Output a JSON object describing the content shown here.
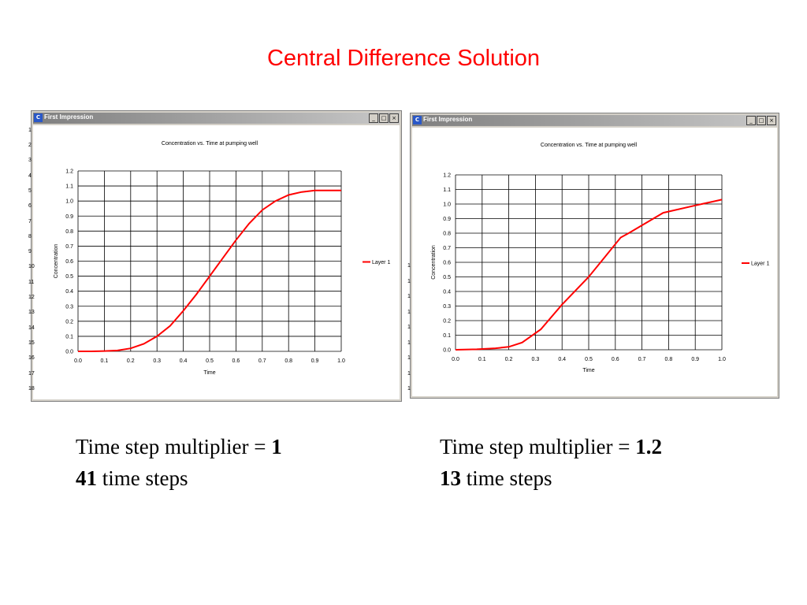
{
  "slide": {
    "title": "Central Difference Solution"
  },
  "windows": [
    {
      "title": "First Impression",
      "icon": "app-logo-icon",
      "controls": {
        "minimize": "_",
        "restore": "□",
        "close": "×"
      },
      "row_numbers": [
        "1",
        "2",
        "3",
        "4",
        "5",
        "6",
        "7",
        "8",
        "9",
        "10",
        "11",
        "12",
        "13",
        "14",
        "15",
        "16",
        "17",
        "18"
      ],
      "chart_data": {
        "type": "line",
        "title": "Concentration vs. Time at pumping well",
        "xlabel": "Time",
        "ylabel": "Concentration",
        "xlim": [
          0.0,
          1.0
        ],
        "ylim": [
          0.0,
          1.2
        ],
        "xticks": [
          "0.0",
          "0.1",
          "0.2",
          "0.3",
          "0.4",
          "0.5",
          "0.6",
          "0.7",
          "0.8",
          "0.9",
          "1.0"
        ],
        "yticks": [
          "0.0",
          "0.1",
          "0.2",
          "0.3",
          "0.4",
          "0.5",
          "0.6",
          "0.7",
          "0.8",
          "0.9",
          "1.0",
          "1.1",
          "1.2"
        ],
        "grid": true,
        "legend_position": "right",
        "series": [
          {
            "name": "Layer 1",
            "color": "#ff0000",
            "x": [
              0.0,
              0.05,
              0.1,
              0.15,
              0.2,
              0.25,
              0.3,
              0.35,
              0.4,
              0.45,
              0.5,
              0.55,
              0.6,
              0.65,
              0.7,
              0.75,
              0.8,
              0.85,
              0.9,
              0.95,
              1.0
            ],
            "y": [
              0.0,
              0.0,
              0.002,
              0.006,
              0.02,
              0.05,
              0.1,
              0.17,
              0.27,
              0.38,
              0.5,
              0.62,
              0.74,
              0.85,
              0.94,
              1.0,
              1.04,
              1.06,
              1.07,
              1.07,
              1.07
            ]
          }
        ]
      }
    },
    {
      "title": "First Impression",
      "icon": "app-logo-icon",
      "controls": {
        "minimize": "_",
        "restore": "□",
        "close": "×"
      },
      "row_numbers": [
        "1",
        "1",
        "1",
        "1",
        "1",
        "1",
        "1",
        "1",
        "1"
      ],
      "chart_data": {
        "type": "line",
        "title": "Concentration vs. Time at pumping well",
        "xlabel": "Time",
        "ylabel": "Concentration",
        "xlim": [
          0.0,
          1.0
        ],
        "ylim": [
          0.0,
          1.2
        ],
        "xticks": [
          "0.0",
          "0.1",
          "0.2",
          "0.3",
          "0.4",
          "0.5",
          "0.6",
          "0.7",
          "0.8",
          "0.9",
          "1.0"
        ],
        "yticks": [
          "0.0",
          "0.1",
          "0.2",
          "0.3",
          "0.4",
          "0.5",
          "0.6",
          "0.7",
          "0.8",
          "0.9",
          "1.0",
          "1.1",
          "1.2"
        ],
        "grid": true,
        "legend_position": "right",
        "series": [
          {
            "name": "Layer 1",
            "color": "#ff0000",
            "x": [
              0.0,
              0.08,
              0.15,
              0.2,
              0.25,
              0.32,
              0.4,
              0.5,
              0.62,
              0.65,
              0.78,
              0.9,
              1.0
            ],
            "y": [
              0.0,
              0.003,
              0.01,
              0.02,
              0.05,
              0.14,
              0.31,
              0.5,
              0.77,
              0.8,
              0.94,
              0.99,
              1.03
            ]
          }
        ]
      }
    }
  ],
  "captions": [
    {
      "multiplier_label": "Time step multiplier = ",
      "multiplier_value": "1",
      "steps_value": "41",
      "steps_label": " time steps"
    },
    {
      "multiplier_label": "Time step multiplier = ",
      "multiplier_value": "1.2",
      "steps_value": "13",
      "steps_label": " time steps"
    }
  ]
}
